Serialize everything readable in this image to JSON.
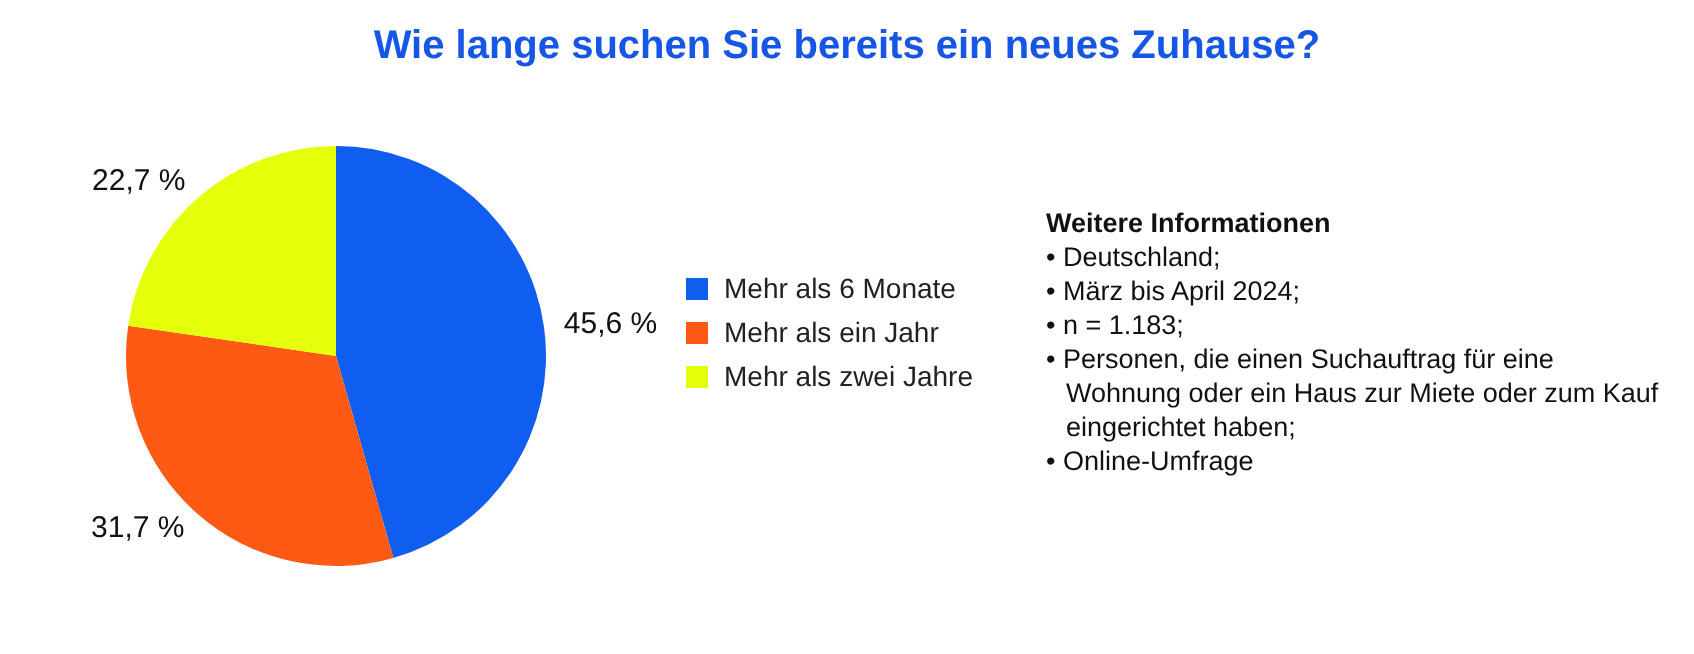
{
  "chart_data": {
    "type": "pie",
    "title": "Wie lange suchen Sie bereits ein neues Zuhause?",
    "categories": [
      "Mehr als 6 Monate",
      "Mehr als ein Jahr",
      "Mehr als zwei Jahre"
    ],
    "values": [
      45.6,
      31.7,
      22.7
    ],
    "value_labels": [
      "45,6 %",
      "31,7 %",
      "22,7 %"
    ],
    "colors": [
      "#0f5ef0",
      "#ff5a14",
      "#e5ff0a"
    ],
    "legend": "right",
    "annotations": [
      "Weitere Informationen",
      "• Deutschland;",
      "• März bis April 2024;",
      "• n = 1.183;",
      "• Personen, die einen Suchauftrag für eine Wohnung oder ein Haus zur Miete oder zum Kauf eingerichtet haben;",
      "• Online-Umfrage"
    ]
  }
}
